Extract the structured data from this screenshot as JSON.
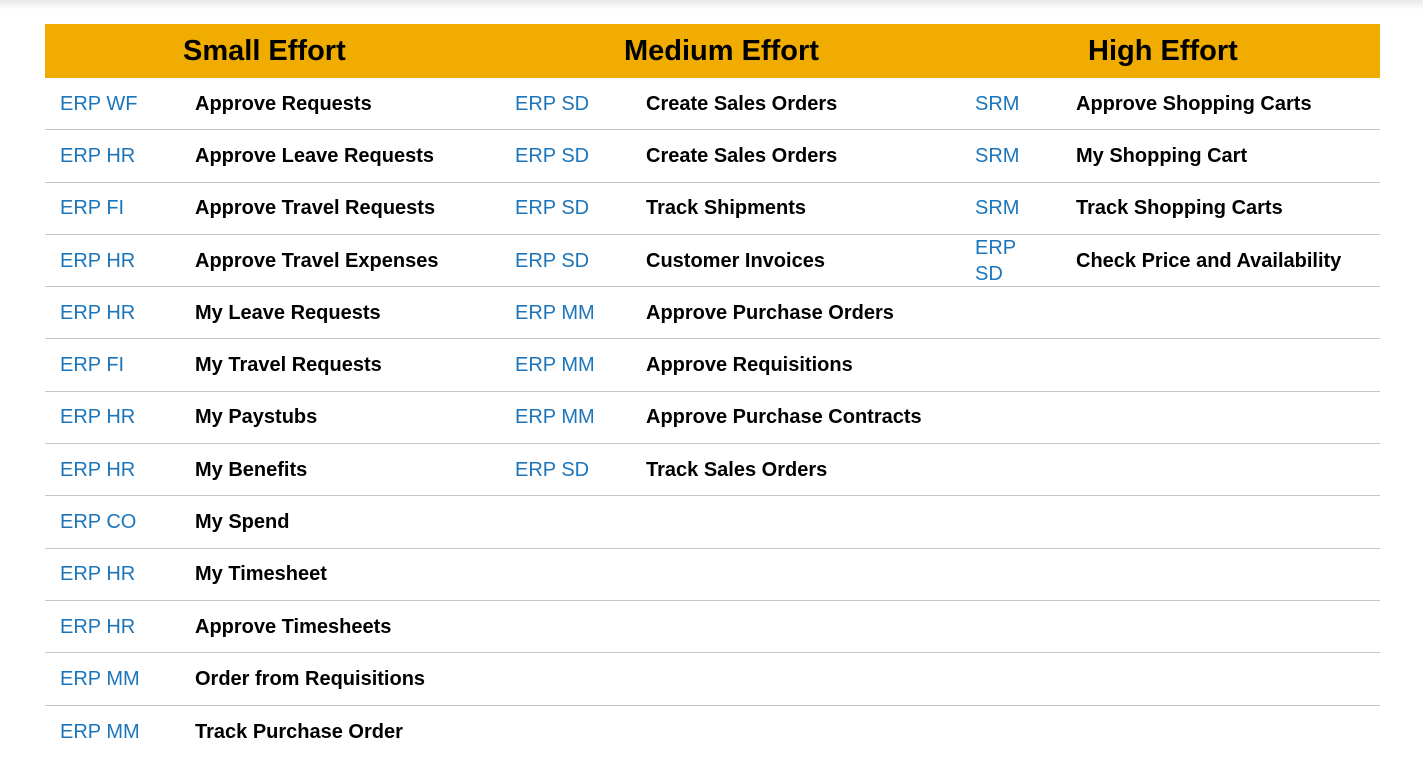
{
  "header": {
    "small": "Small Effort",
    "medium": "Medium Effort",
    "high": "High Effort"
  },
  "rows": [
    {
      "s_sys": "ERP WF",
      "s_task": "Approve Requests",
      "m_sys": "ERP SD",
      "m_task": "Create Sales Orders",
      "h_sys": "SRM",
      "h_task": "Approve Shopping Carts"
    },
    {
      "s_sys": "ERP HR",
      "s_task": "Approve Leave Requests",
      "m_sys": "ERP SD",
      "m_task": "Create Sales Orders",
      "h_sys": "SRM",
      "h_task": "My Shopping Cart"
    },
    {
      "s_sys": "ERP FI",
      "s_task": "Approve Travel Requests",
      "m_sys": "ERP SD",
      "m_task": "Track Shipments",
      "h_sys": "SRM",
      "h_task": "Track Shopping Carts"
    },
    {
      "s_sys": "ERP HR",
      "s_task": "Approve Travel Expenses",
      "m_sys": "ERP SD",
      "m_task": "Customer Invoices",
      "h_sys": "ERP SD",
      "h_task": "Check Price and Availability"
    },
    {
      "s_sys": "ERP HR",
      "s_task": "My Leave Requests",
      "m_sys": "ERP MM",
      "m_task": "Approve Purchase Orders",
      "h_sys": "",
      "h_task": ""
    },
    {
      "s_sys": "ERP FI",
      "s_task": "My Travel Requests",
      "m_sys": "ERP MM",
      "m_task": "Approve Requisitions",
      "h_sys": "",
      "h_task": ""
    },
    {
      "s_sys": "ERP HR",
      "s_task": "My Paystubs",
      "m_sys": "ERP MM",
      "m_task": "Approve Purchase Contracts",
      "h_sys": "",
      "h_task": ""
    },
    {
      "s_sys": "ERP HR",
      "s_task": "My Benefits",
      "m_sys": "ERP SD",
      "m_task": "Track Sales Orders",
      "h_sys": "",
      "h_task": ""
    },
    {
      "s_sys": "ERP CO",
      "s_task": "My Spend",
      "m_sys": "",
      "m_task": "",
      "h_sys": "",
      "h_task": ""
    },
    {
      "s_sys": "ERP HR",
      "s_task": "My Timesheet",
      "m_sys": "",
      "m_task": "",
      "h_sys": "",
      "h_task": ""
    },
    {
      "s_sys": "ERP HR",
      "s_task": "Approve Timesheets",
      "m_sys": "",
      "m_task": "",
      "h_sys": "",
      "h_task": ""
    },
    {
      "s_sys": "ERP MM",
      "s_task": "Order from Requisitions",
      "m_sys": "",
      "m_task": "",
      "h_sys": "",
      "h_task": ""
    },
    {
      "s_sys": "ERP MM",
      "s_task": "Track Purchase Order",
      "m_sys": "",
      "m_task": "",
      "h_sys": "",
      "h_task": ""
    }
  ],
  "colors": {
    "header_bg": "#f0ac00",
    "system_text": "#1b75bb",
    "task_text": "#000000",
    "divider": "#c6c6c6"
  }
}
